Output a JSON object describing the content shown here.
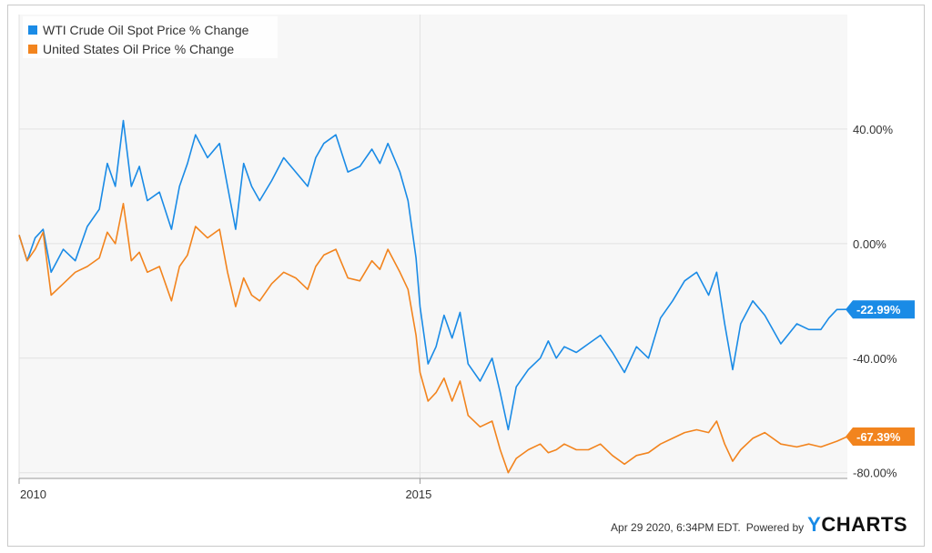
{
  "chart_data": {
    "type": "line",
    "title": "",
    "xlabel": "",
    "ylabel": "",
    "x_ticks": [
      "2010",
      "2015"
    ],
    "y_ticks": [
      40,
      0,
      -40,
      -80
    ],
    "y_tick_labels": [
      "40.00%",
      "0.00%",
      "-40.00%",
      "-80.00%"
    ],
    "ylim": [
      -82,
      80
    ],
    "xlim": [
      2010.0,
      2020.33
    ],
    "grid": true,
    "legend_position": "top-left",
    "series": [
      {
        "name": "WTI Crude Oil Spot Price % Change",
        "color": "#1a8be6",
        "end_label": "-22.99%",
        "points": [
          [
            2010.0,
            3
          ],
          [
            2010.1,
            -6
          ],
          [
            2010.2,
            2
          ],
          [
            2010.3,
            5
          ],
          [
            2010.4,
            -10
          ],
          [
            2010.55,
            -2
          ],
          [
            2010.7,
            -6
          ],
          [
            2010.85,
            6
          ],
          [
            2011.0,
            12
          ],
          [
            2011.1,
            28
          ],
          [
            2011.2,
            20
          ],
          [
            2011.3,
            43
          ],
          [
            2011.4,
            20
          ],
          [
            2011.5,
            27
          ],
          [
            2011.6,
            15
          ],
          [
            2011.75,
            18
          ],
          [
            2011.9,
            5
          ],
          [
            2012.0,
            20
          ],
          [
            2012.1,
            28
          ],
          [
            2012.2,
            38
          ],
          [
            2012.35,
            30
          ],
          [
            2012.5,
            35
          ],
          [
            2012.6,
            20
          ],
          [
            2012.7,
            5
          ],
          [
            2012.8,
            28
          ],
          [
            2012.9,
            20
          ],
          [
            2013.0,
            15
          ],
          [
            2013.15,
            22
          ],
          [
            2013.3,
            30
          ],
          [
            2013.45,
            25
          ],
          [
            2013.6,
            20
          ],
          [
            2013.7,
            30
          ],
          [
            2013.8,
            35
          ],
          [
            2013.95,
            38
          ],
          [
            2014.1,
            25
          ],
          [
            2014.25,
            27
          ],
          [
            2014.4,
            33
          ],
          [
            2014.5,
            28
          ],
          [
            2014.6,
            35
          ],
          [
            2014.75,
            25
          ],
          [
            2014.85,
            15
          ],
          [
            2014.95,
            -5
          ],
          [
            2015.0,
            -22
          ],
          [
            2015.1,
            -42
          ],
          [
            2015.2,
            -36
          ],
          [
            2015.3,
            -25
          ],
          [
            2015.4,
            -33
          ],
          [
            2015.5,
            -24
          ],
          [
            2015.6,
            -42
          ],
          [
            2015.75,
            -48
          ],
          [
            2015.9,
            -40
          ],
          [
            2016.0,
            -52
          ],
          [
            2016.1,
            -65
          ],
          [
            2016.2,
            -50
          ],
          [
            2016.35,
            -44
          ],
          [
            2016.5,
            -40
          ],
          [
            2016.6,
            -34
          ],
          [
            2016.7,
            -40
          ],
          [
            2016.8,
            -36
          ],
          [
            2016.95,
            -38
          ],
          [
            2017.1,
            -35
          ],
          [
            2017.25,
            -32
          ],
          [
            2017.4,
            -38
          ],
          [
            2017.55,
            -45
          ],
          [
            2017.7,
            -36
          ],
          [
            2017.85,
            -40
          ],
          [
            2018.0,
            -26
          ],
          [
            2018.15,
            -20
          ],
          [
            2018.3,
            -13
          ],
          [
            2018.45,
            -10
          ],
          [
            2018.6,
            -18
          ],
          [
            2018.7,
            -10
          ],
          [
            2018.8,
            -28
          ],
          [
            2018.9,
            -44
          ],
          [
            2019.0,
            -28
          ],
          [
            2019.15,
            -20
          ],
          [
            2019.3,
            -25
          ],
          [
            2019.5,
            -35
          ],
          [
            2019.7,
            -28
          ],
          [
            2019.85,
            -30
          ],
          [
            2020.0,
            -30
          ],
          [
            2020.1,
            -26
          ],
          [
            2020.2,
            -23
          ],
          [
            2020.33,
            -22.99
          ]
        ]
      },
      {
        "name": "United States Oil Price % Change",
        "color": "#f2841e",
        "end_label": "-67.39%",
        "points": [
          [
            2010.0,
            3
          ],
          [
            2010.1,
            -6
          ],
          [
            2010.2,
            -2
          ],
          [
            2010.3,
            4
          ],
          [
            2010.4,
            -18
          ],
          [
            2010.55,
            -14
          ],
          [
            2010.7,
            -10
          ],
          [
            2010.85,
            -8
          ],
          [
            2011.0,
            -5
          ],
          [
            2011.1,
            4
          ],
          [
            2011.2,
            0
          ],
          [
            2011.3,
            14
          ],
          [
            2011.4,
            -6
          ],
          [
            2011.5,
            -3
          ],
          [
            2011.6,
            -10
          ],
          [
            2011.75,
            -8
          ],
          [
            2011.9,
            -20
          ],
          [
            2012.0,
            -8
          ],
          [
            2012.1,
            -4
          ],
          [
            2012.2,
            6
          ],
          [
            2012.35,
            2
          ],
          [
            2012.5,
            5
          ],
          [
            2012.6,
            -10
          ],
          [
            2012.7,
            -22
          ],
          [
            2012.8,
            -12
          ],
          [
            2012.9,
            -18
          ],
          [
            2013.0,
            -20
          ],
          [
            2013.15,
            -14
          ],
          [
            2013.3,
            -10
          ],
          [
            2013.45,
            -12
          ],
          [
            2013.6,
            -16
          ],
          [
            2013.7,
            -8
          ],
          [
            2013.8,
            -4
          ],
          [
            2013.95,
            -2
          ],
          [
            2014.1,
            -12
          ],
          [
            2014.25,
            -13
          ],
          [
            2014.4,
            -6
          ],
          [
            2014.5,
            -9
          ],
          [
            2014.6,
            -2
          ],
          [
            2014.75,
            -10
          ],
          [
            2014.85,
            -16
          ],
          [
            2014.95,
            -32
          ],
          [
            2015.0,
            -45
          ],
          [
            2015.1,
            -55
          ],
          [
            2015.2,
            -52
          ],
          [
            2015.3,
            -47
          ],
          [
            2015.4,
            -55
          ],
          [
            2015.5,
            -48
          ],
          [
            2015.6,
            -60
          ],
          [
            2015.75,
            -64
          ],
          [
            2015.9,
            -62
          ],
          [
            2016.0,
            -72
          ],
          [
            2016.1,
            -80
          ],
          [
            2016.2,
            -75
          ],
          [
            2016.35,
            -72
          ],
          [
            2016.5,
            -70
          ],
          [
            2016.6,
            -73
          ],
          [
            2016.7,
            -72
          ],
          [
            2016.8,
            -70
          ],
          [
            2016.95,
            -72
          ],
          [
            2017.1,
            -72
          ],
          [
            2017.25,
            -70
          ],
          [
            2017.4,
            -74
          ],
          [
            2017.55,
            -77
          ],
          [
            2017.7,
            -74
          ],
          [
            2017.85,
            -73
          ],
          [
            2018.0,
            -70
          ],
          [
            2018.15,
            -68
          ],
          [
            2018.3,
            -66
          ],
          [
            2018.45,
            -65
          ],
          [
            2018.6,
            -66
          ],
          [
            2018.7,
            -62
          ],
          [
            2018.8,
            -70
          ],
          [
            2018.9,
            -76
          ],
          [
            2019.0,
            -72
          ],
          [
            2019.15,
            -68
          ],
          [
            2019.3,
            -66
          ],
          [
            2019.5,
            -70
          ],
          [
            2019.7,
            -71
          ],
          [
            2019.85,
            -70
          ],
          [
            2020.0,
            -71
          ],
          [
            2020.1,
            -70
          ],
          [
            2020.2,
            -69
          ],
          [
            2020.33,
            -67.39
          ]
        ]
      }
    ]
  },
  "footer": {
    "timestamp": "Apr 29 2020, 6:34PM EDT.",
    "powered_by": "Powered by",
    "brand_y": "Y",
    "brand_rest": "CHARTS"
  }
}
